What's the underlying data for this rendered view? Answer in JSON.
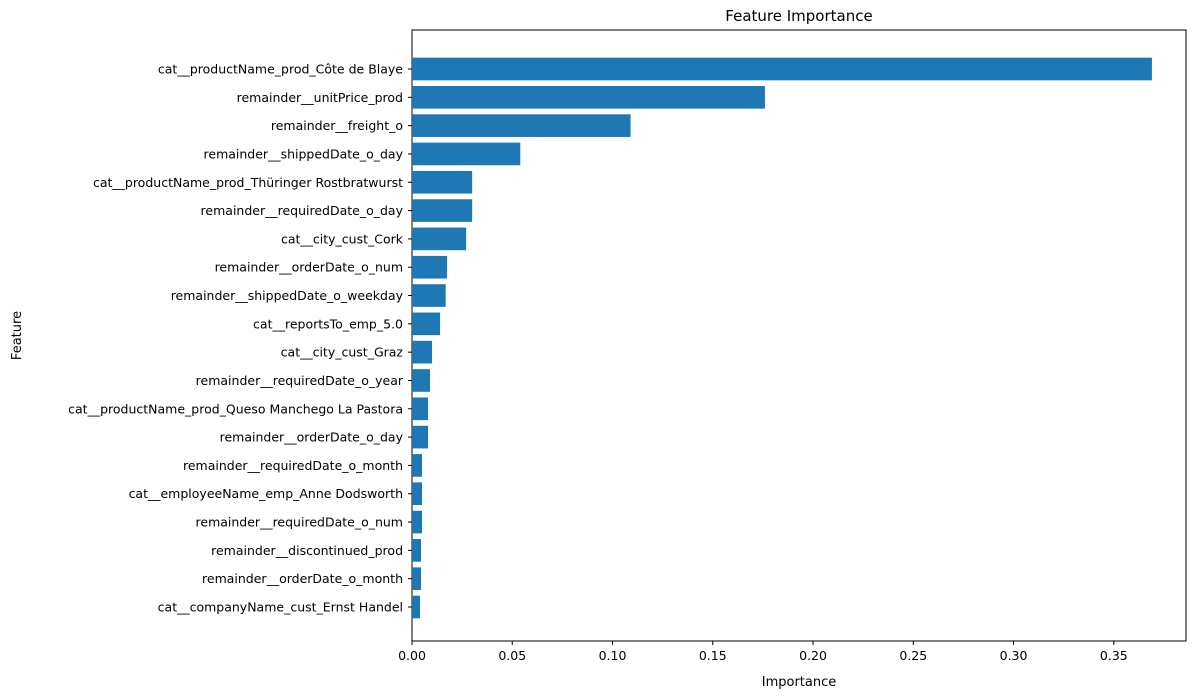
{
  "chart_data": {
    "type": "bar",
    "orientation": "horizontal",
    "title": "Feature Importance",
    "xlabel": "Importance",
    "ylabel": "Feature",
    "xlim": [
      0,
      0.386
    ],
    "xticks": [
      0.0,
      0.05,
      0.1,
      0.15,
      0.2,
      0.25,
      0.3,
      0.35
    ],
    "xtick_labels": [
      "0.00",
      "0.05",
      "0.10",
      "0.15",
      "0.20",
      "0.25",
      "0.30",
      "0.35"
    ],
    "grid": false,
    "bar_color": "#1f77b4",
    "categories": [
      "cat__productName_prod_Côte de Blaye",
      "remainder__unitPrice_prod",
      "remainder__freight_o",
      "remainder__shippedDate_o_day",
      "cat__productName_prod_Thüringer Rostbratwurst",
      "remainder__requiredDate_o_day",
      "cat__city_cust_Cork",
      "remainder__orderDate_o_num",
      "remainder__shippedDate_o_weekday",
      "cat__reportsTo_emp_5.0",
      "cat__city_cust_Graz",
      "remainder__requiredDate_o_year",
      "cat__productName_prod_Queso Manchego La Pastora",
      "remainder__orderDate_o_day",
      "remainder__requiredDate_o_month",
      "cat__employeeName_emp_Anne Dodsworth",
      "remainder__requiredDate_o_num",
      "remainder__discontinued_prod",
      "remainder__orderDate_o_month",
      "cat__companyName_cust_Ernst Handel"
    ],
    "values": [
      0.369,
      0.176,
      0.109,
      0.054,
      0.03,
      0.03,
      0.027,
      0.0175,
      0.0168,
      0.014,
      0.01,
      0.009,
      0.008,
      0.008,
      0.005,
      0.005,
      0.005,
      0.0045,
      0.0045,
      0.004
    ]
  }
}
